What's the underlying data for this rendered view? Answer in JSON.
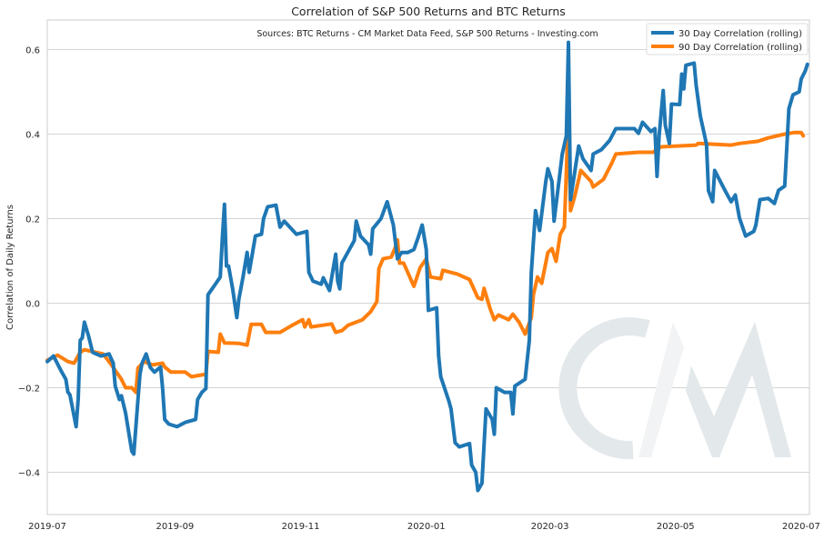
{
  "chart_data": {
    "type": "line",
    "title": "Correlation of S&P 500 Returns and BTC Returns",
    "annotation": "Sources: BTC Returns - CM Market Data Feed,  S&P 500 Returns - Investing.com",
    "xlabel": "",
    "ylabel": "Correlation of Daily Returns",
    "xlim": [
      "2019-07-01",
      "2020-07-05"
    ],
    "ylim": [
      -0.5,
      0.67
    ],
    "x_ticks": [
      "2019-07",
      "2019-09",
      "2019-11",
      "2020-01",
      "2020-03",
      "2020-05",
      "2020-07"
    ],
    "y_ticks": [
      0.6,
      0.4,
      0.2,
      0.0,
      -0.2,
      -0.4
    ],
    "y_tick_labels": [
      "0.6",
      "0.4",
      "0.2",
      "0.0",
      "−0.2",
      "−0.4"
    ],
    "grid": "horizontal",
    "legend_placement": "top-right",
    "watermark": "CM",
    "series": [
      {
        "name": "30 Day Correlation (rolling)",
        "color": "#1f77b4",
        "points": [
          [
            "2019-07-01",
            -0.138
          ],
          [
            "2019-07-04",
            -0.125
          ],
          [
            "2019-07-08",
            -0.163
          ],
          [
            "2019-07-10",
            -0.18
          ],
          [
            "2019-07-11",
            -0.21
          ],
          [
            "2019-07-12",
            -0.217
          ],
          [
            "2019-07-15",
            -0.292
          ],
          [
            "2019-07-16",
            -0.226
          ],
          [
            "2019-07-17",
            -0.088
          ],
          [
            "2019-07-18",
            -0.082
          ],
          [
            "2019-07-19",
            -0.045
          ],
          [
            "2019-07-21",
            -0.077
          ],
          [
            "2019-07-23",
            -0.116
          ],
          [
            "2019-07-27",
            -0.125
          ],
          [
            "2019-07-31",
            -0.12
          ],
          [
            "2019-08-02",
            -0.142
          ],
          [
            "2019-08-03",
            -0.196
          ],
          [
            "2019-08-05",
            -0.228
          ],
          [
            "2019-08-06",
            -0.219
          ],
          [
            "2019-08-08",
            -0.26
          ],
          [
            "2019-08-11",
            -0.35
          ],
          [
            "2019-08-12",
            -0.357
          ],
          [
            "2019-08-14",
            -0.228
          ],
          [
            "2019-08-15",
            -0.168
          ],
          [
            "2019-08-16",
            -0.142
          ],
          [
            "2019-08-18",
            -0.12
          ],
          [
            "2019-08-20",
            -0.152
          ],
          [
            "2019-08-22",
            -0.163
          ],
          [
            "2019-08-25",
            -0.151
          ],
          [
            "2019-08-26",
            -0.202
          ],
          [
            "2019-08-27",
            -0.275
          ],
          [
            "2019-08-29",
            -0.286
          ],
          [
            "2019-09-02",
            -0.292
          ],
          [
            "2019-09-06",
            -0.282
          ],
          [
            "2019-09-11",
            -0.275
          ],
          [
            "2019-09-12",
            -0.228
          ],
          [
            "2019-09-14",
            -0.211
          ],
          [
            "2019-09-16",
            -0.202
          ],
          [
            "2019-09-17",
            0.02
          ],
          [
            "2019-09-20",
            0.041
          ],
          [
            "2019-09-23",
            0.062
          ],
          [
            "2019-09-24",
            0.155
          ],
          [
            "2019-09-25",
            0.234
          ],
          [
            "2019-09-26",
            0.088
          ],
          [
            "2019-09-27",
            0.088
          ],
          [
            "2019-09-29",
            0.034
          ],
          [
            "2019-10-01",
            -0.034
          ],
          [
            "2019-10-02",
            0.009
          ],
          [
            "2019-10-04",
            0.062
          ],
          [
            "2019-10-06",
            0.12
          ],
          [
            "2019-10-07",
            0.073
          ],
          [
            "2019-10-10",
            0.159
          ],
          [
            "2019-10-13",
            0.163
          ],
          [
            "2019-10-14",
            0.2
          ],
          [
            "2019-10-16",
            0.228
          ],
          [
            "2019-10-20",
            0.232
          ],
          [
            "2019-10-22",
            0.18
          ],
          [
            "2019-10-24",
            0.194
          ],
          [
            "2019-10-30",
            0.163
          ],
          [
            "2019-11-04",
            0.17
          ],
          [
            "2019-11-05",
            0.073
          ],
          [
            "2019-11-07",
            0.052
          ],
          [
            "2019-11-11",
            0.045
          ],
          [
            "2019-11-12",
            0.06
          ],
          [
            "2019-11-15",
            0.03
          ],
          [
            "2019-11-18",
            0.116
          ],
          [
            "2019-11-19",
            0.052
          ],
          [
            "2019-11-20",
            0.034
          ],
          [
            "2019-11-21",
            0.095
          ],
          [
            "2019-11-27",
            0.148
          ],
          [
            "2019-11-28",
            0.194
          ],
          [
            "2019-11-30",
            0.159
          ],
          [
            "2019-12-04",
            0.138
          ],
          [
            "2019-12-05",
            0.116
          ],
          [
            "2019-12-06",
            0.176
          ],
          [
            "2019-12-10",
            0.2
          ],
          [
            "2019-12-13",
            0.24
          ],
          [
            "2019-12-16",
            0.185
          ],
          [
            "2019-12-18",
            0.105
          ],
          [
            "2019-12-20",
            0.12
          ],
          [
            "2019-12-23",
            0.12
          ],
          [
            "2019-12-26",
            0.127
          ],
          [
            "2019-12-28",
            0.155
          ],
          [
            "2019-12-30",
            0.185
          ],
          [
            "2020-01-01",
            0.127
          ],
          [
            "2020-01-02",
            -0.017
          ],
          [
            "2020-01-06",
            -0.011
          ],
          [
            "2020-01-07",
            -0.125
          ],
          [
            "2020-01-08",
            -0.174
          ],
          [
            "2020-01-12",
            -0.232
          ],
          [
            "2020-01-13",
            -0.25
          ],
          [
            "2020-01-15",
            -0.33
          ],
          [
            "2020-01-17",
            -0.34
          ],
          [
            "2020-01-22",
            -0.332
          ],
          [
            "2020-01-23",
            -0.383
          ],
          [
            "2020-01-25",
            -0.4
          ],
          [
            "2020-01-26",
            -0.443
          ],
          [
            "2020-01-28",
            -0.426
          ],
          [
            "2020-01-30",
            -0.25
          ],
          [
            "2020-02-02",
            -0.275
          ],
          [
            "2020-02-03",
            -0.31
          ],
          [
            "2020-02-04",
            -0.2
          ],
          [
            "2020-02-08",
            -0.211
          ],
          [
            "2020-02-11",
            -0.211
          ],
          [
            "2020-02-12",
            -0.262
          ],
          [
            "2020-02-13",
            -0.196
          ],
          [
            "2020-02-18",
            -0.18
          ],
          [
            "2020-02-20",
            -0.088
          ],
          [
            "2020-02-21",
            0.073
          ],
          [
            "2020-02-23",
            0.219
          ],
          [
            "2020-02-25",
            0.172
          ],
          [
            "2020-02-28",
            0.288
          ],
          [
            "2020-02-29",
            0.318
          ],
          [
            "2020-03-02",
            0.288
          ],
          [
            "2020-03-03",
            0.194
          ],
          [
            "2020-03-07",
            0.353
          ],
          [
            "2020-03-09",
            0.396
          ],
          [
            "2020-03-10",
            0.617
          ],
          [
            "2020-03-11",
            0.245
          ],
          [
            "2020-03-15",
            0.372
          ],
          [
            "2020-03-17",
            0.342
          ],
          [
            "2020-03-21",
            0.314
          ],
          [
            "2020-03-22",
            0.353
          ],
          [
            "2020-03-26",
            0.363
          ],
          [
            "2020-03-30",
            0.385
          ],
          [
            "2020-04-02",
            0.413
          ],
          [
            "2020-04-11",
            0.413
          ],
          [
            "2020-04-13",
            0.402
          ],
          [
            "2020-04-15",
            0.428
          ],
          [
            "2020-04-19",
            0.406
          ],
          [
            "2020-04-21",
            0.413
          ],
          [
            "2020-04-22",
            0.3
          ],
          [
            "2020-04-23",
            0.396
          ],
          [
            "2020-04-25",
            0.503
          ],
          [
            "2020-04-26",
            0.421
          ],
          [
            "2020-04-28",
            0.378
          ],
          [
            "2020-04-29",
            0.471
          ],
          [
            "2020-05-03",
            0.47
          ],
          [
            "2020-05-04",
            0.542
          ],
          [
            "2020-05-05",
            0.507
          ],
          [
            "2020-05-06",
            0.563
          ],
          [
            "2020-05-10",
            0.568
          ],
          [
            "2020-05-11",
            0.516
          ],
          [
            "2020-05-13",
            0.443
          ],
          [
            "2020-05-16",
            0.376
          ],
          [
            "2020-05-17",
            0.266
          ],
          [
            "2020-05-19",
            0.24
          ],
          [
            "2020-05-20",
            0.314
          ],
          [
            "2020-05-25",
            0.267
          ],
          [
            "2020-05-28",
            0.24
          ],
          [
            "2020-05-30",
            0.256
          ],
          [
            "2020-06-01",
            0.202
          ],
          [
            "2020-06-04",
            0.159
          ],
          [
            "2020-06-08",
            0.17
          ],
          [
            "2020-06-09",
            0.185
          ],
          [
            "2020-06-11",
            0.245
          ],
          [
            "2020-06-15",
            0.248
          ],
          [
            "2020-06-18",
            0.236
          ],
          [
            "2020-06-20",
            0.267
          ],
          [
            "2020-06-23",
            0.277
          ],
          [
            "2020-06-25",
            0.46
          ],
          [
            "2020-06-27",
            0.493
          ],
          [
            "2020-06-30",
            0.5
          ],
          [
            "2020-07-01",
            0.53
          ],
          [
            "2020-07-03",
            0.55
          ],
          [
            "2020-07-04",
            0.565
          ]
        ]
      },
      {
        "name": "90 Day Correlation (rolling)",
        "color": "#ff7f0e",
        "points": [
          [
            "2019-07-01",
            -0.135
          ],
          [
            "2019-07-06",
            -0.123
          ],
          [
            "2019-07-11",
            -0.138
          ],
          [
            "2019-07-14",
            -0.142
          ],
          [
            "2019-07-17",
            -0.116
          ],
          [
            "2019-07-19",
            -0.11
          ],
          [
            "2019-07-28",
            -0.12
          ],
          [
            "2019-07-31",
            -0.138
          ],
          [
            "2019-08-03",
            -0.159
          ],
          [
            "2019-08-06",
            -0.18
          ],
          [
            "2019-08-08",
            -0.2
          ],
          [
            "2019-08-11",
            -0.2
          ],
          [
            "2019-08-13",
            -0.211
          ],
          [
            "2019-08-14",
            -0.153
          ],
          [
            "2019-08-17",
            -0.138
          ],
          [
            "2019-08-21",
            -0.146
          ],
          [
            "2019-08-26",
            -0.142
          ],
          [
            "2019-08-27",
            -0.151
          ],
          [
            "2019-08-30",
            -0.163
          ],
          [
            "2019-09-06",
            -0.163
          ],
          [
            "2019-09-09",
            -0.174
          ],
          [
            "2019-09-16",
            -0.168
          ],
          [
            "2019-09-17",
            -0.114
          ],
          [
            "2019-09-22",
            -0.116
          ],
          [
            "2019-09-23",
            -0.073
          ],
          [
            "2019-09-25",
            -0.094
          ],
          [
            "2019-10-02",
            -0.095
          ],
          [
            "2019-10-06",
            -0.099
          ],
          [
            "2019-10-08",
            -0.05
          ],
          [
            "2019-10-13",
            -0.05
          ],
          [
            "2019-10-15",
            -0.069
          ],
          [
            "2019-10-22",
            -0.069
          ],
          [
            "2019-10-28",
            -0.052
          ],
          [
            "2019-11-02",
            -0.039
          ],
          [
            "2019-11-03",
            -0.056
          ],
          [
            "2019-11-05",
            -0.039
          ],
          [
            "2019-11-06",
            -0.056
          ],
          [
            "2019-11-16",
            -0.049
          ],
          [
            "2019-11-18",
            -0.069
          ],
          [
            "2019-11-21",
            -0.065
          ],
          [
            "2019-11-24",
            -0.052
          ],
          [
            "2019-12-01",
            -0.039
          ],
          [
            "2019-12-05",
            -0.02
          ],
          [
            "2019-12-08",
            0.004
          ],
          [
            "2019-12-09",
            0.082
          ],
          [
            "2019-12-11",
            0.105
          ],
          [
            "2019-12-15",
            0.109
          ],
          [
            "2019-12-17",
            0.133
          ],
          [
            "2019-12-18",
            0.15
          ],
          [
            "2019-12-19",
            0.095
          ],
          [
            "2019-12-21",
            0.095
          ],
          [
            "2019-12-26",
            0.04
          ],
          [
            "2019-12-29",
            0.084
          ],
          [
            "2020-01-01",
            0.105
          ],
          [
            "2020-01-03",
            0.062
          ],
          [
            "2020-01-08",
            0.058
          ],
          [
            "2020-01-09",
            0.078
          ],
          [
            "2020-01-16",
            0.069
          ],
          [
            "2020-01-22",
            0.056
          ],
          [
            "2020-01-26",
            0.013
          ],
          [
            "2020-01-28",
            0.009
          ],
          [
            "2020-01-29",
            0.035
          ],
          [
            "2020-02-01",
            -0.013
          ],
          [
            "2020-02-03",
            -0.039
          ],
          [
            "2020-02-05",
            -0.028
          ],
          [
            "2020-02-10",
            -0.039
          ],
          [
            "2020-02-12",
            -0.026
          ],
          [
            "2020-02-15",
            -0.045
          ],
          [
            "2020-02-18",
            -0.073
          ],
          [
            "2020-02-21",
            -0.034
          ],
          [
            "2020-02-22",
            0.02
          ],
          [
            "2020-02-24",
            0.062
          ],
          [
            "2020-02-26",
            0.047
          ],
          [
            "2020-02-29",
            0.12
          ],
          [
            "2020-03-02",
            0.129
          ],
          [
            "2020-03-04",
            0.099
          ],
          [
            "2020-03-06",
            0.163
          ],
          [
            "2020-03-08",
            0.18
          ],
          [
            "2020-03-09",
            0.31
          ],
          [
            "2020-03-10",
            0.45
          ],
          [
            "2020-03-11",
            0.219
          ],
          [
            "2020-03-13",
            0.252
          ],
          [
            "2020-03-16",
            0.314
          ],
          [
            "2020-03-21",
            0.288
          ],
          [
            "2020-03-22",
            0.275
          ],
          [
            "2020-03-27",
            0.293
          ],
          [
            "2020-03-31",
            0.331
          ],
          [
            "2020-04-02",
            0.353
          ],
          [
            "2020-04-13",
            0.357
          ],
          [
            "2020-04-20",
            0.357
          ],
          [
            "2020-04-24",
            0.37
          ],
          [
            "2020-05-11",
            0.374
          ],
          [
            "2020-05-12",
            0.378
          ],
          [
            "2020-05-28",
            0.374
          ],
          [
            "2020-06-01",
            0.378
          ],
          [
            "2020-06-10",
            0.383
          ],
          [
            "2020-06-15",
            0.391
          ],
          [
            "2020-06-23",
            0.4
          ],
          [
            "2020-06-28",
            0.404
          ],
          [
            "2020-07-01",
            0.404
          ],
          [
            "2020-07-02",
            0.396
          ]
        ]
      }
    ]
  }
}
